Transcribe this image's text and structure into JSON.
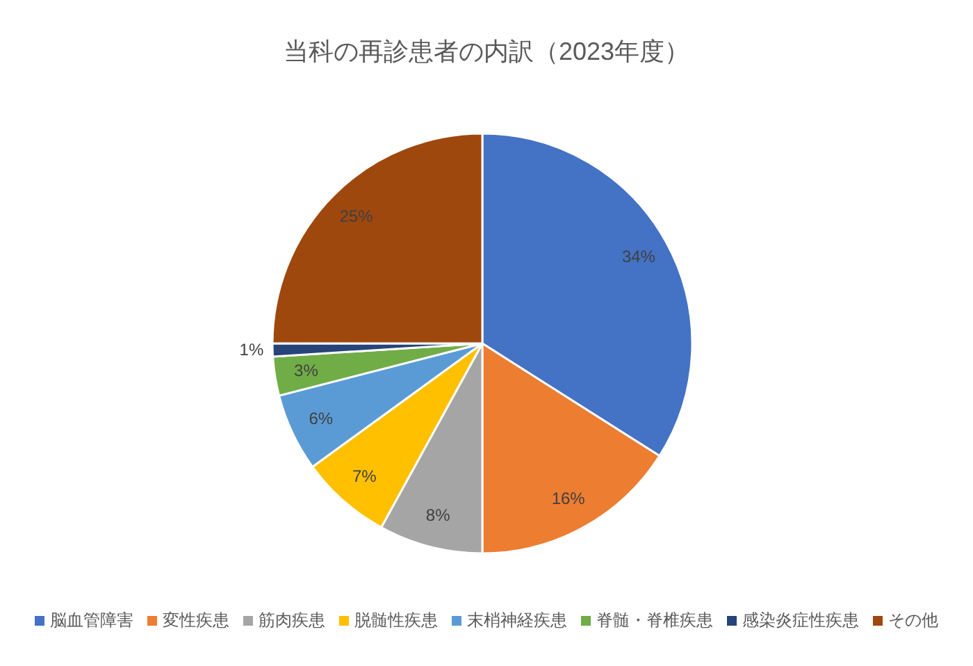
{
  "chart_data": {
    "type": "pie",
    "title": "当科の再診患者の内訳（2023年度）",
    "categories": [
      "脳血管障害",
      "変性疾患",
      "筋肉疾患",
      "脱髄性疾患",
      "末梢神経疾患",
      "脊髄・脊椎疾患",
      "感染炎症性疾患",
      "その他"
    ],
    "values": [
      34,
      16,
      8,
      7,
      6,
      3,
      1,
      25
    ],
    "colors": [
      "#4472c4",
      "#ed7d31",
      "#a5a5a5",
      "#ffc000",
      "#5b9bd5",
      "#70ad47",
      "#264478",
      "#9e480e"
    ],
    "value_labels": [
      "34%",
      "16%",
      "8%",
      "7%",
      "6%",
      "3%",
      "1%",
      "25%"
    ],
    "legend": "bottom"
  }
}
